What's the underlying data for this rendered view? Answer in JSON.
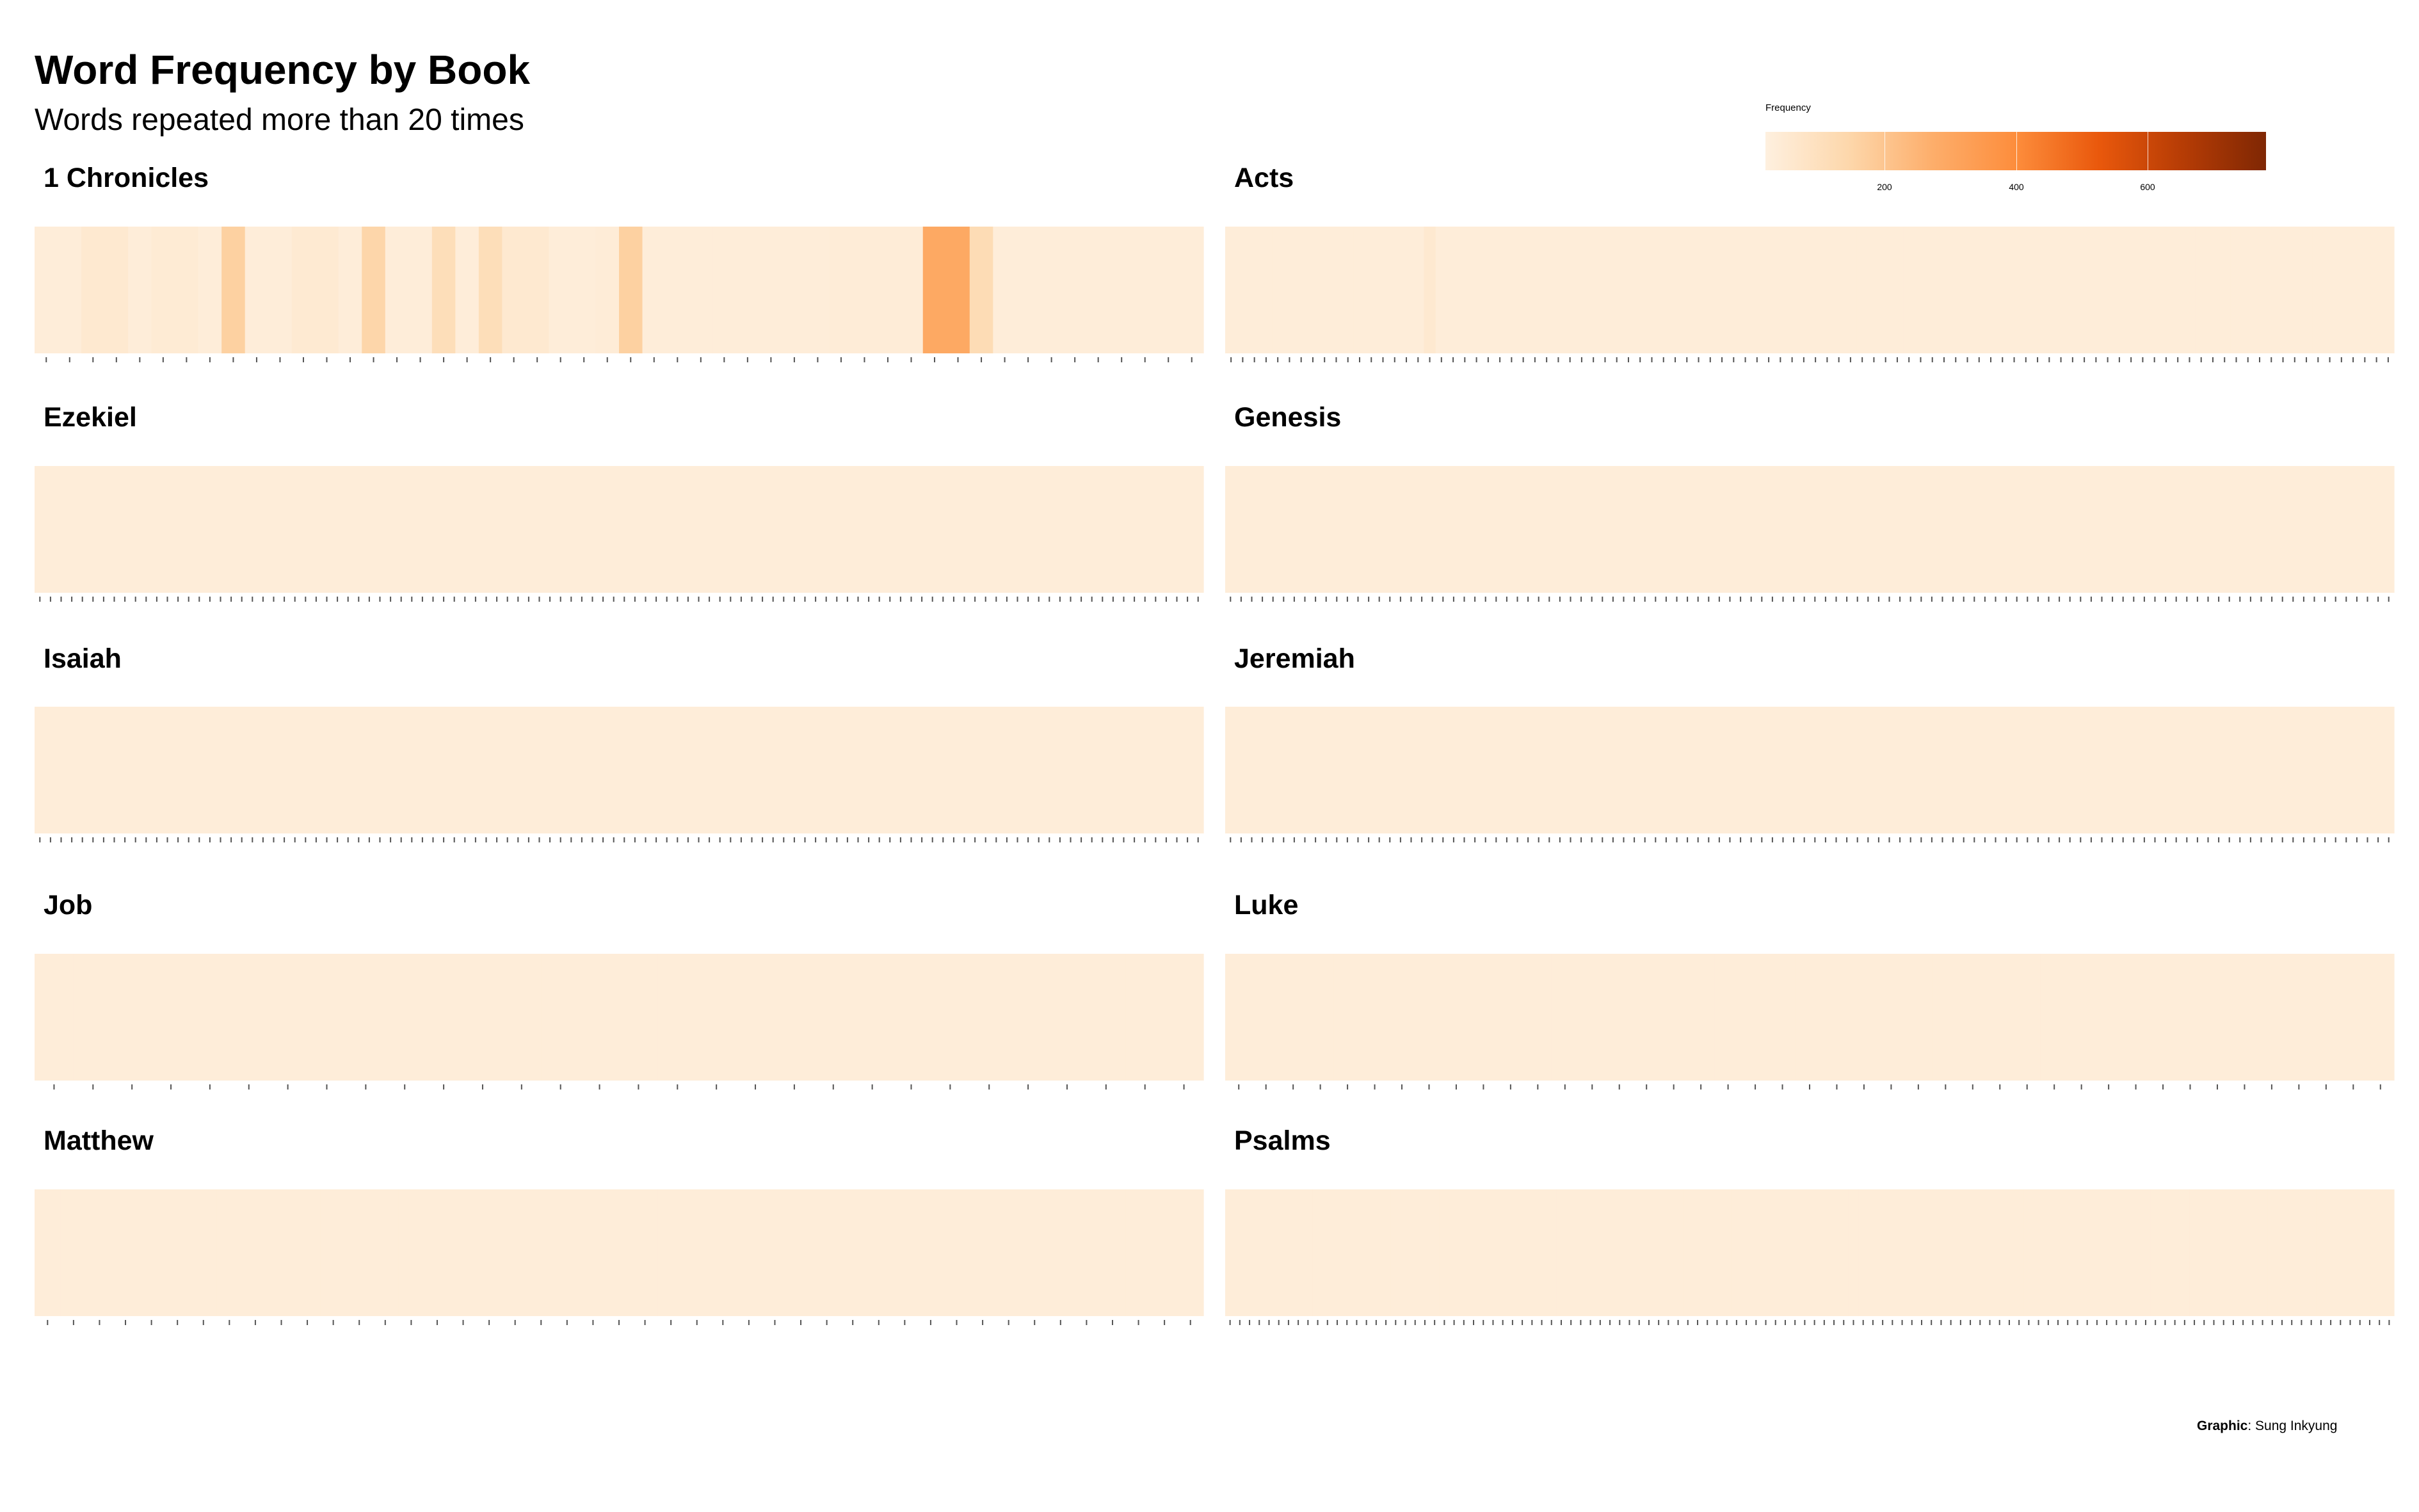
{
  "title": "Word Frequency by Book",
  "subtitle": "Words repeated more than 20 times",
  "legend": {
    "title": "Frequency",
    "ticks": [
      "200",
      "400",
      "600"
    ],
    "tick_values": [
      200,
      400,
      600
    ]
  },
  "credit": {
    "label": "Graphic",
    "name": "Sung Inkyung"
  },
  "colors": {
    "low": "#fef0df",
    "mid": "#fd8d3c",
    "high": "#7f2704"
  },
  "chart_data": {
    "type": "heatmap",
    "fill_range": [
      20,
      780
    ],
    "panels": [
      {
        "book": "1 Chronicles",
        "values": [
          35,
          35,
          60,
          60,
          35,
          50,
          50,
          35,
          180,
          35,
          35,
          55,
          55,
          35,
          160,
          35,
          35,
          120,
          35,
          120,
          60,
          60,
          35,
          35,
          40,
          180,
          35,
          35,
          35,
          35,
          35,
          35,
          35,
          35,
          40,
          40,
          40,
          40,
          330,
          330,
          130,
          35,
          35,
          35,
          35,
          35,
          35,
          35,
          35,
          35
        ]
      },
      {
        "book": "Acts",
        "values": [
          35,
          35,
          35,
          35,
          35,
          35,
          35,
          35,
          35,
          35,
          35,
          35,
          35,
          35,
          35,
          35,
          35,
          60,
          35,
          35,
          35,
          35,
          35,
          35,
          35,
          35,
          35,
          35,
          35,
          35,
          35,
          35,
          35,
          35,
          35,
          35,
          35,
          35,
          35,
          35,
          35,
          35,
          35,
          35,
          35,
          35,
          35,
          35,
          35,
          35,
          35,
          35,
          35,
          35,
          35,
          35,
          35,
          35,
          35,
          35,
          35,
          35,
          35,
          35,
          35,
          35,
          35,
          35,
          35,
          35,
          35,
          35,
          35,
          35,
          35,
          35,
          35,
          35,
          35,
          35,
          35,
          35,
          35,
          35,
          35,
          35,
          35,
          35,
          35,
          35,
          35,
          35,
          35,
          35,
          35,
          35,
          35,
          35,
          35,
          35
        ]
      },
      {
        "book": "Ezekiel",
        "values": [
          35,
          35,
          35,
          35,
          35,
          35,
          35,
          35,
          35,
          35,
          35,
          35,
          35,
          35,
          35,
          35,
          35,
          35,
          35,
          35,
          35,
          35,
          35,
          35,
          35,
          35,
          35,
          35,
          35,
          35,
          35,
          35,
          35,
          35,
          35,
          35,
          35,
          35,
          35,
          35,
          35,
          35,
          35,
          35,
          35,
          35,
          35,
          35,
          35,
          35,
          35,
          35,
          35,
          35,
          35,
          35,
          35,
          35,
          35,
          35,
          35,
          35,
          35,
          35,
          35,
          35,
          35,
          35,
          35,
          35,
          35,
          35,
          35,
          35,
          35,
          35,
          35,
          35,
          35,
          35,
          35,
          35,
          35,
          35,
          35,
          35,
          35,
          35,
          35,
          35,
          35,
          35,
          35,
          35,
          35,
          35,
          35,
          35,
          35,
          35,
          35,
          35,
          35,
          35,
          35,
          35,
          35,
          35,
          35,
          35
        ]
      },
      {
        "book": "Genesis",
        "values": [
          35,
          35,
          35,
          35,
          35,
          35,
          35,
          35,
          35,
          35,
          35,
          35,
          35,
          35,
          35,
          35,
          35,
          35,
          35,
          35,
          35,
          35,
          35,
          35,
          35,
          35,
          35,
          35,
          35,
          35,
          35,
          35,
          35,
          35,
          35,
          35,
          35,
          35,
          35,
          35,
          35,
          35,
          35,
          35,
          35,
          35,
          35,
          35,
          35,
          35,
          35,
          35,
          35,
          35,
          35,
          35,
          35,
          35,
          35,
          35,
          35,
          35,
          35,
          35,
          35,
          35,
          35,
          35,
          35,
          35,
          35,
          35,
          35,
          35,
          35,
          35,
          35,
          35,
          35,
          35,
          35,
          35,
          35,
          35,
          35,
          35,
          35,
          35,
          35,
          35,
          35,
          35,
          35,
          35,
          35,
          35,
          35,
          35,
          35,
          35,
          35,
          35,
          35,
          35,
          35,
          35,
          35,
          35,
          35,
          35
        ]
      },
      {
        "book": "Isaiah",
        "values": [
          35,
          35,
          35,
          35,
          35,
          35,
          35,
          35,
          35,
          35,
          35,
          35,
          35,
          35,
          35,
          35,
          35,
          35,
          35,
          35,
          35,
          35,
          35,
          35,
          35,
          35,
          35,
          35,
          35,
          35,
          35,
          35,
          35,
          35,
          35,
          35,
          35,
          35,
          35,
          35,
          35,
          35,
          35,
          35,
          35,
          35,
          35,
          35,
          35,
          35,
          35,
          35,
          35,
          35,
          35,
          35,
          35,
          35,
          35,
          35,
          35,
          35,
          35,
          35,
          35,
          35,
          35,
          35,
          35,
          35,
          35,
          35,
          35,
          35,
          35,
          35,
          35,
          35,
          35,
          35,
          35,
          35,
          35,
          35,
          35,
          35,
          35,
          35,
          35,
          35,
          35,
          35,
          35,
          35,
          35,
          35,
          35,
          35,
          35,
          35,
          35,
          35,
          35,
          35,
          35,
          35,
          35,
          35,
          35,
          35
        ]
      },
      {
        "book": "Jeremiah",
        "values": [
          35,
          35,
          35,
          35,
          35,
          35,
          35,
          35,
          35,
          35,
          35,
          35,
          35,
          35,
          35,
          35,
          35,
          35,
          35,
          35,
          35,
          35,
          35,
          35,
          35,
          35,
          35,
          35,
          35,
          35,
          35,
          35,
          35,
          35,
          35,
          35,
          35,
          35,
          35,
          35,
          35,
          35,
          35,
          35,
          35,
          35,
          35,
          35,
          35,
          35,
          35,
          35,
          35,
          35,
          35,
          35,
          35,
          35,
          35,
          35,
          35,
          35,
          35,
          35,
          35,
          35,
          35,
          35,
          35,
          35,
          35,
          35,
          35,
          35,
          35,
          35,
          35,
          35,
          35,
          35,
          35,
          35,
          35,
          35,
          35,
          35,
          35,
          35,
          35,
          35,
          35,
          35,
          35,
          35,
          35,
          35,
          35,
          35,
          35,
          35,
          35,
          35,
          35,
          35,
          35,
          35,
          35,
          35,
          35,
          35
        ]
      },
      {
        "book": "Job",
        "values": [
          35,
          35,
          35,
          35,
          35,
          35,
          35,
          35,
          35,
          35,
          35,
          35,
          35,
          35,
          35,
          35,
          35,
          35,
          35,
          35,
          35,
          35,
          35,
          35,
          35,
          35,
          35,
          35,
          35,
          35
        ]
      },
      {
        "book": "Luke",
        "values": [
          35,
          35,
          35,
          35,
          35,
          35,
          35,
          35,
          35,
          35,
          35,
          35,
          35,
          35,
          35,
          35,
          35,
          35,
          35,
          35,
          35,
          35,
          35,
          35,
          35,
          35,
          35,
          35,
          35,
          35,
          35,
          35,
          35,
          35,
          35,
          35,
          35,
          35,
          35,
          35,
          35,
          35,
          35
        ]
      },
      {
        "book": "Matthew",
        "values": [
          35,
          35,
          35,
          35,
          35,
          35,
          35,
          35,
          35,
          35,
          35,
          35,
          35,
          35,
          35,
          35,
          35,
          35,
          35,
          35,
          35,
          35,
          35,
          35,
          35,
          35,
          35,
          35,
          35,
          35,
          35,
          35,
          35,
          35,
          35,
          35,
          35,
          35,
          35,
          35,
          35,
          35,
          35,
          35,
          35
        ]
      },
      {
        "book": "Psalms",
        "values": [
          35,
          35,
          35,
          35,
          35,
          35,
          35,
          35,
          35,
          35,
          35,
          35,
          35,
          35,
          35,
          35,
          35,
          35,
          35,
          35,
          35,
          35,
          35,
          35,
          35,
          35,
          35,
          35,
          35,
          35,
          35,
          35,
          35,
          35,
          35,
          35,
          35,
          35,
          35,
          35,
          35,
          35,
          35,
          35,
          35,
          35,
          35,
          35,
          35,
          35,
          35,
          35,
          35,
          35,
          35,
          35,
          35,
          35,
          35,
          35,
          35,
          35,
          35,
          35,
          35,
          35,
          35,
          35,
          35,
          35,
          35,
          35,
          35,
          35,
          35,
          35,
          35,
          35,
          35,
          35,
          35,
          35,
          35,
          35,
          35,
          35,
          35,
          35,
          35,
          35,
          35,
          35,
          35,
          35,
          35,
          35,
          35,
          35,
          35,
          35,
          35,
          35,
          35,
          35,
          35,
          35,
          35,
          35,
          35,
          35,
          35,
          35,
          35,
          35,
          35,
          35,
          35,
          35,
          35,
          35
        ]
      }
    ]
  }
}
